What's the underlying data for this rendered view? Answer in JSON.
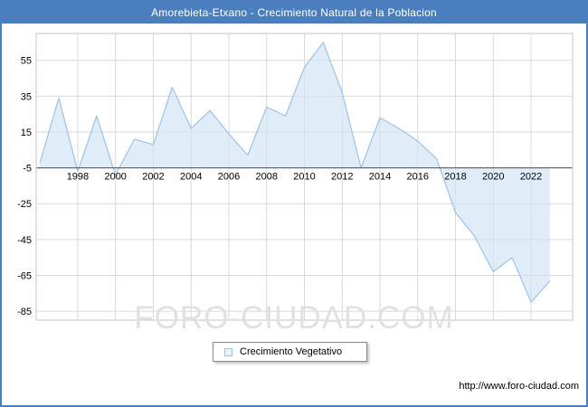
{
  "window": {
    "title": "Amorebieta-Etxano - Crecimiento Natural de la Poblacion"
  },
  "watermark": "FORO-CIUDAD.COM",
  "footer": {
    "url": "http://www.foro-ciudad.com"
  },
  "legend": {
    "items": [
      {
        "label": "Crecimiento Vegetativo",
        "swatch_color": "#9dc3e6"
      }
    ]
  },
  "colors": {
    "accent_blue": "#4a7ebc",
    "line": "#9dc3e6",
    "fill": "#cfe3f6",
    "grid": "#d9d9d9",
    "axis": "#4d4d4d",
    "watermark": "#e1e1e1"
  },
  "chart_data": {
    "type": "area",
    "title": "Amorebieta-Etxano - Crecimiento Natural de la Poblacion",
    "series_name": "Crecimiento Vegetativo",
    "x": [
      1996,
      1997,
      1998,
      1999,
      2000,
      2001,
      2002,
      2003,
      2004,
      2005,
      2006,
      2007,
      2008,
      2009,
      2010,
      2011,
      2012,
      2013,
      2014,
      2015,
      2016,
      2017,
      2018,
      2019,
      2020,
      2021,
      2022,
      2023
    ],
    "values": [
      -2,
      34,
      -7,
      24,
      -9,
      11,
      8,
      40,
      17,
      27,
      14,
      2,
      29,
      24,
      51,
      65,
      37,
      -5,
      23,
      17,
      10,
      0,
      -30,
      -43,
      -63,
      -55,
      -80,
      -68
    ],
    "baseline": -5,
    "xticks": [
      1998,
      2000,
      2002,
      2004,
      2006,
      2008,
      2010,
      2012,
      2014,
      2016,
      2018,
      2020,
      2022
    ],
    "yticks": [
      55,
      35,
      15,
      -5,
      -25,
      -45,
      -65,
      -85
    ],
    "ylim": [
      -90,
      70
    ],
    "xlim": [
      1995.8,
      2024.2
    ],
    "grid": true,
    "legend_position": "bottom"
  }
}
